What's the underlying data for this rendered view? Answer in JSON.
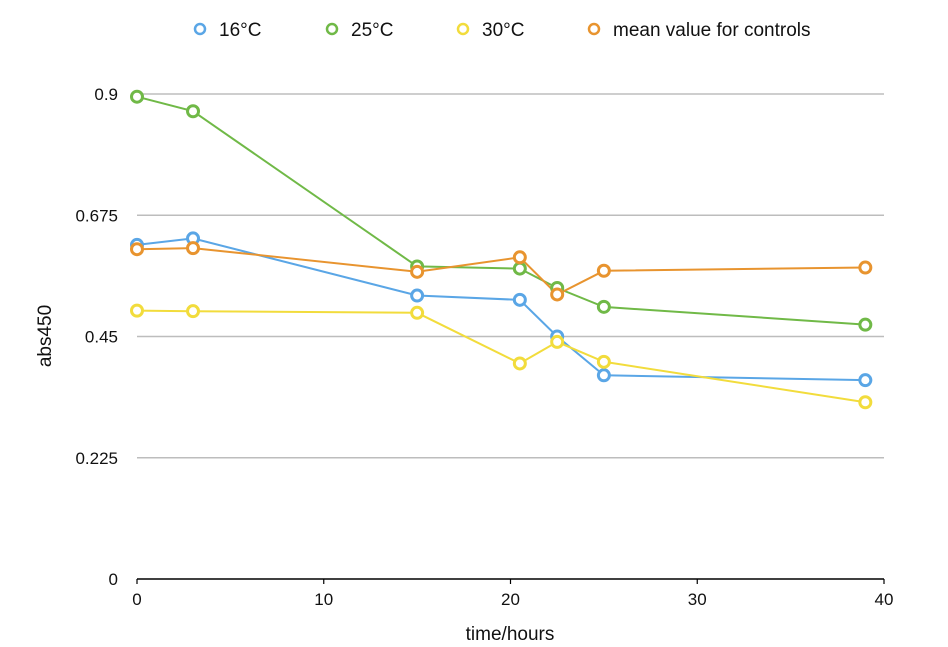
{
  "chart_data": {
    "type": "line",
    "xlabel": "time/hours",
    "ylabel": "abs450",
    "xlim": [
      0,
      40
    ],
    "ylim": [
      0,
      0.9
    ],
    "x_ticks": [
      "0",
      "10",
      "20",
      "30",
      "40"
    ],
    "y_ticks": [
      "0",
      "0.225",
      "0.45",
      "0.675",
      "0.9"
    ],
    "grid": "horizontal",
    "legend_position": "top",
    "series": [
      {
        "name": "16°C",
        "color": "#5aa6e6",
        "points": [
          [
            0,
            0.62
          ],
          [
            3,
            0.632
          ],
          [
            15,
            0.526
          ],
          [
            20.5,
            0.518
          ],
          [
            22.5,
            0.45
          ],
          [
            25,
            0.378
          ],
          [
            39,
            0.369
          ]
        ]
      },
      {
        "name": "25°C",
        "color": "#70b947",
        "points": [
          [
            0,
            0.895
          ],
          [
            3,
            0.868
          ],
          [
            15,
            0.58
          ],
          [
            20.5,
            0.576
          ],
          [
            22.5,
            0.54
          ],
          [
            25,
            0.505
          ],
          [
            39,
            0.472
          ]
        ]
      },
      {
        "name": "30°C",
        "color": "#f2dc3c",
        "points": [
          [
            0,
            0.498
          ],
          [
            3,
            0.497
          ],
          [
            15,
            0.494
          ],
          [
            20.5,
            0.4
          ],
          [
            22.5,
            0.44
          ],
          [
            25,
            0.403
          ],
          [
            39,
            0.328
          ]
        ]
      },
      {
        "name": "mean value for controls",
        "color": "#e8942f",
        "points": [
          [
            0,
            0.612
          ],
          [
            3,
            0.614
          ],
          [
            15,
            0.57
          ],
          [
            20.5,
            0.597
          ],
          [
            22.5,
            0.528
          ],
          [
            25,
            0.572
          ],
          [
            39,
            0.578
          ]
        ]
      }
    ]
  }
}
